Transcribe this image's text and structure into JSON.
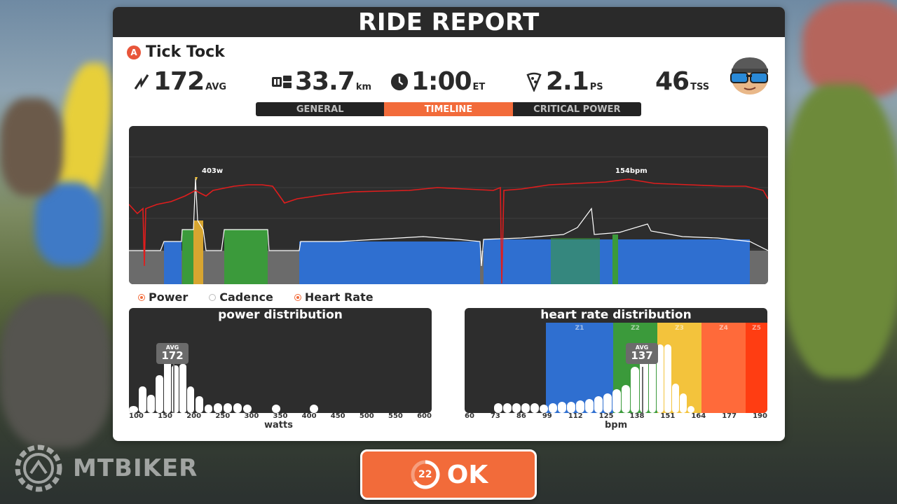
{
  "header": {
    "title": "RIDE REPORT"
  },
  "rider": {
    "badge": "A",
    "name": "Tick Tock"
  },
  "stats": {
    "power": {
      "value": "172",
      "unit": "AVG",
      "icon": "power-bolt-icon"
    },
    "distance": {
      "value": "33.7",
      "unit": "km",
      "icon": "odometer-icon"
    },
    "time": {
      "value": "1:00",
      "unit": "ET",
      "icon": "clock-icon"
    },
    "pizza": {
      "value": "2.1",
      "unit": "PS",
      "icon": "pizza-slice-icon"
    },
    "tss": {
      "value": "46",
      "unit": "TSS"
    }
  },
  "tabs": [
    "GENERAL",
    "TIMELINE",
    "CRITICAL POWER"
  ],
  "active_tab": "TIMELINE",
  "timeline": {
    "power_peak_label": "403w",
    "hr_peak_label": "154bpm"
  },
  "legend": [
    "Power",
    "Cadence",
    "Heart Rate"
  ],
  "power_distribution": {
    "title": "power distribution",
    "avg_label": "AVG",
    "avg_value": "172",
    "ticks": [
      "100",
      "150",
      "200",
      "250",
      "300",
      "350",
      "400",
      "450",
      "500",
      "550",
      "600"
    ],
    "xlabel": "watts"
  },
  "hr_distribution": {
    "title": "heart rate distribution",
    "avg_label": "AVG",
    "avg_value": "137",
    "zones": [
      "Z1",
      "Z2",
      "Z3",
      "Z4",
      "Z5"
    ],
    "ticks": [
      "60",
      "73",
      "86",
      "99",
      "112",
      "125",
      "138",
      "151",
      "164",
      "177",
      "190"
    ],
    "xlabel": "bpm"
  },
  "ok_button": {
    "label": "OK",
    "countdown": "22"
  },
  "watermark": {
    "text": "MTBIKER"
  },
  "colors": {
    "accent": "#f26b3a",
    "power_z1_blue": "#2f6fd0",
    "power_z2_green": "#3b9a3b",
    "power_z3_yellow": "#f3c33c",
    "hr_z4_orange": "#ff6a3a",
    "hr_z5_red": "#ff3d12",
    "heart_rate_line": "#e01d1d"
  }
}
